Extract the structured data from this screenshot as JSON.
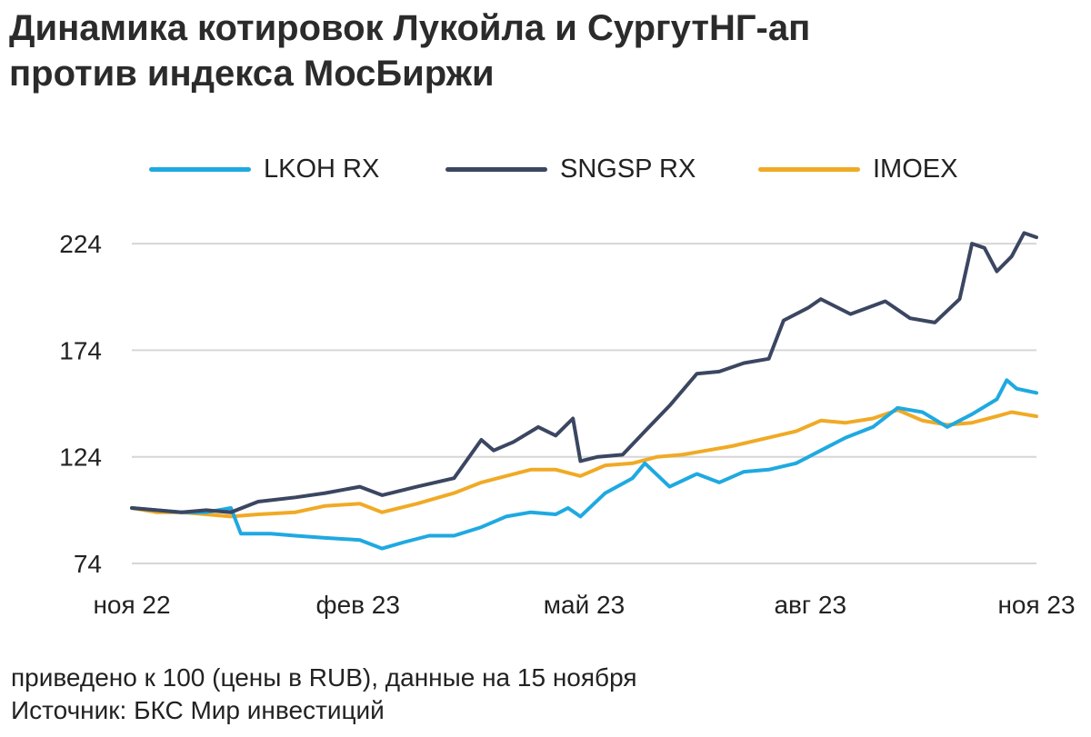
{
  "title": {
    "line1": "Динамика котировок Лукойла и СургутНГ-ап",
    "line2": "против индекса МосБиржи"
  },
  "colors": {
    "LKOH RX": "#1fa9e1",
    "SNGSP RX": "#3b4661",
    "IMOEX": "#f0aa25",
    "grid": "#d6d6d6"
  },
  "footer": {
    "note": "приведено к 100 (цены в RUB), данные на 15 ноября",
    "source": "Источник: БКС Мир инвестиций"
  },
  "chart_data": {
    "type": "line",
    "title": "Динамика котировок Лукойла и СургутНГ-ап против индекса МосБиржи",
    "xlabel": "",
    "ylabel": "",
    "ylim": [
      74,
      236
    ],
    "yticks": [
      74,
      124,
      174,
      224
    ],
    "xticks": [
      "ноя 22",
      "фев 23",
      "май 23",
      "авг 23",
      "ноя 23"
    ],
    "xlim": [
      "2022-11-15",
      "2023-11-15"
    ],
    "grid": true,
    "legend_position": "top",
    "series": [
      {
        "name": "LKOH RX",
        "points": [
          [
            "2022-11-15",
            100
          ],
          [
            "2022-11-25",
            99
          ],
          [
            "2022-12-05",
            98
          ],
          [
            "2022-12-15",
            98
          ],
          [
            "2022-12-25",
            100
          ],
          [
            "2022-12-29",
            88
          ],
          [
            "2023-01-10",
            88
          ],
          [
            "2023-01-20",
            87
          ],
          [
            "2023-02-01",
            86
          ],
          [
            "2023-02-15",
            85
          ],
          [
            "2023-02-24",
            81
          ],
          [
            "2023-03-05",
            84
          ],
          [
            "2023-03-15",
            87
          ],
          [
            "2023-03-25",
            87
          ],
          [
            "2023-04-05",
            91
          ],
          [
            "2023-04-15",
            96
          ],
          [
            "2023-04-25",
            98
          ],
          [
            "2023-05-05",
            97
          ],
          [
            "2023-05-10",
            100
          ],
          [
            "2023-05-15",
            96
          ],
          [
            "2023-05-25",
            107
          ],
          [
            "2023-06-05",
            114
          ],
          [
            "2023-06-10",
            121
          ],
          [
            "2023-06-20",
            110
          ],
          [
            "2023-07-01",
            116
          ],
          [
            "2023-07-10",
            112
          ],
          [
            "2023-07-20",
            117
          ],
          [
            "2023-07-30",
            118
          ],
          [
            "2023-08-10",
            121
          ],
          [
            "2023-08-20",
            127
          ],
          [
            "2023-08-30",
            133
          ],
          [
            "2023-09-10",
            138
          ],
          [
            "2023-09-20",
            147
          ],
          [
            "2023-09-30",
            145
          ],
          [
            "2023-10-10",
            138
          ],
          [
            "2023-10-20",
            144
          ],
          [
            "2023-10-30",
            151
          ],
          [
            "2023-11-03",
            160
          ],
          [
            "2023-11-07",
            156
          ],
          [
            "2023-11-11",
            155
          ],
          [
            "2023-11-15",
            154
          ]
        ]
      },
      {
        "name": "SNGSP RX",
        "points": [
          [
            "2022-11-15",
            100
          ],
          [
            "2022-11-25",
            99
          ],
          [
            "2022-12-05",
            98
          ],
          [
            "2022-12-15",
            99
          ],
          [
            "2022-12-25",
            98
          ],
          [
            "2023-01-05",
            103
          ],
          [
            "2023-01-20",
            105
          ],
          [
            "2023-02-01",
            107
          ],
          [
            "2023-02-15",
            110
          ],
          [
            "2023-02-24",
            106
          ],
          [
            "2023-03-10",
            110
          ],
          [
            "2023-03-25",
            114
          ],
          [
            "2023-04-05",
            132
          ],
          [
            "2023-04-10",
            127
          ],
          [
            "2023-04-18",
            131
          ],
          [
            "2023-04-28",
            138
          ],
          [
            "2023-05-05",
            134
          ],
          [
            "2023-05-12",
            142
          ],
          [
            "2023-05-15",
            122
          ],
          [
            "2023-05-22",
            124
          ],
          [
            "2023-06-01",
            125
          ],
          [
            "2023-06-10",
            136
          ],
          [
            "2023-06-20",
            148
          ],
          [
            "2023-07-01",
            163
          ],
          [
            "2023-07-10",
            164
          ],
          [
            "2023-07-20",
            168
          ],
          [
            "2023-07-30",
            170
          ],
          [
            "2023-08-05",
            188
          ],
          [
            "2023-08-15",
            194
          ],
          [
            "2023-08-20",
            198
          ],
          [
            "2023-09-01",
            191
          ],
          [
            "2023-09-15",
            197
          ],
          [
            "2023-09-25",
            189
          ],
          [
            "2023-10-05",
            187
          ],
          [
            "2023-10-15",
            198
          ],
          [
            "2023-10-20",
            224
          ],
          [
            "2023-10-25",
            222
          ],
          [
            "2023-10-30",
            211
          ],
          [
            "2023-11-05",
            218
          ],
          [
            "2023-11-10",
            229
          ],
          [
            "2023-11-15",
            227
          ]
        ]
      },
      {
        "name": "IMOEX",
        "points": [
          [
            "2022-11-15",
            100
          ],
          [
            "2022-11-25",
            98
          ],
          [
            "2022-12-05",
            98
          ],
          [
            "2022-12-15",
            97
          ],
          [
            "2022-12-25",
            96
          ],
          [
            "2023-01-05",
            97
          ],
          [
            "2023-01-20",
            98
          ],
          [
            "2023-02-01",
            101
          ],
          [
            "2023-02-15",
            102
          ],
          [
            "2023-02-24",
            98
          ],
          [
            "2023-03-10",
            102
          ],
          [
            "2023-03-25",
            107
          ],
          [
            "2023-04-05",
            112
          ],
          [
            "2023-04-15",
            115
          ],
          [
            "2023-04-25",
            118
          ],
          [
            "2023-05-05",
            118
          ],
          [
            "2023-05-15",
            115
          ],
          [
            "2023-05-25",
            120
          ],
          [
            "2023-06-05",
            121
          ],
          [
            "2023-06-15",
            124
          ],
          [
            "2023-06-25",
            125
          ],
          [
            "2023-07-05",
            127
          ],
          [
            "2023-07-15",
            129
          ],
          [
            "2023-07-30",
            133
          ],
          [
            "2023-08-10",
            136
          ],
          [
            "2023-08-20",
            141
          ],
          [
            "2023-08-30",
            140
          ],
          [
            "2023-09-10",
            142
          ],
          [
            "2023-09-20",
            146
          ],
          [
            "2023-09-30",
            141
          ],
          [
            "2023-10-10",
            139
          ],
          [
            "2023-10-20",
            140
          ],
          [
            "2023-10-30",
            143
          ],
          [
            "2023-11-05",
            145
          ],
          [
            "2023-11-10",
            144
          ],
          [
            "2023-11-15",
            143
          ]
        ]
      }
    ]
  }
}
